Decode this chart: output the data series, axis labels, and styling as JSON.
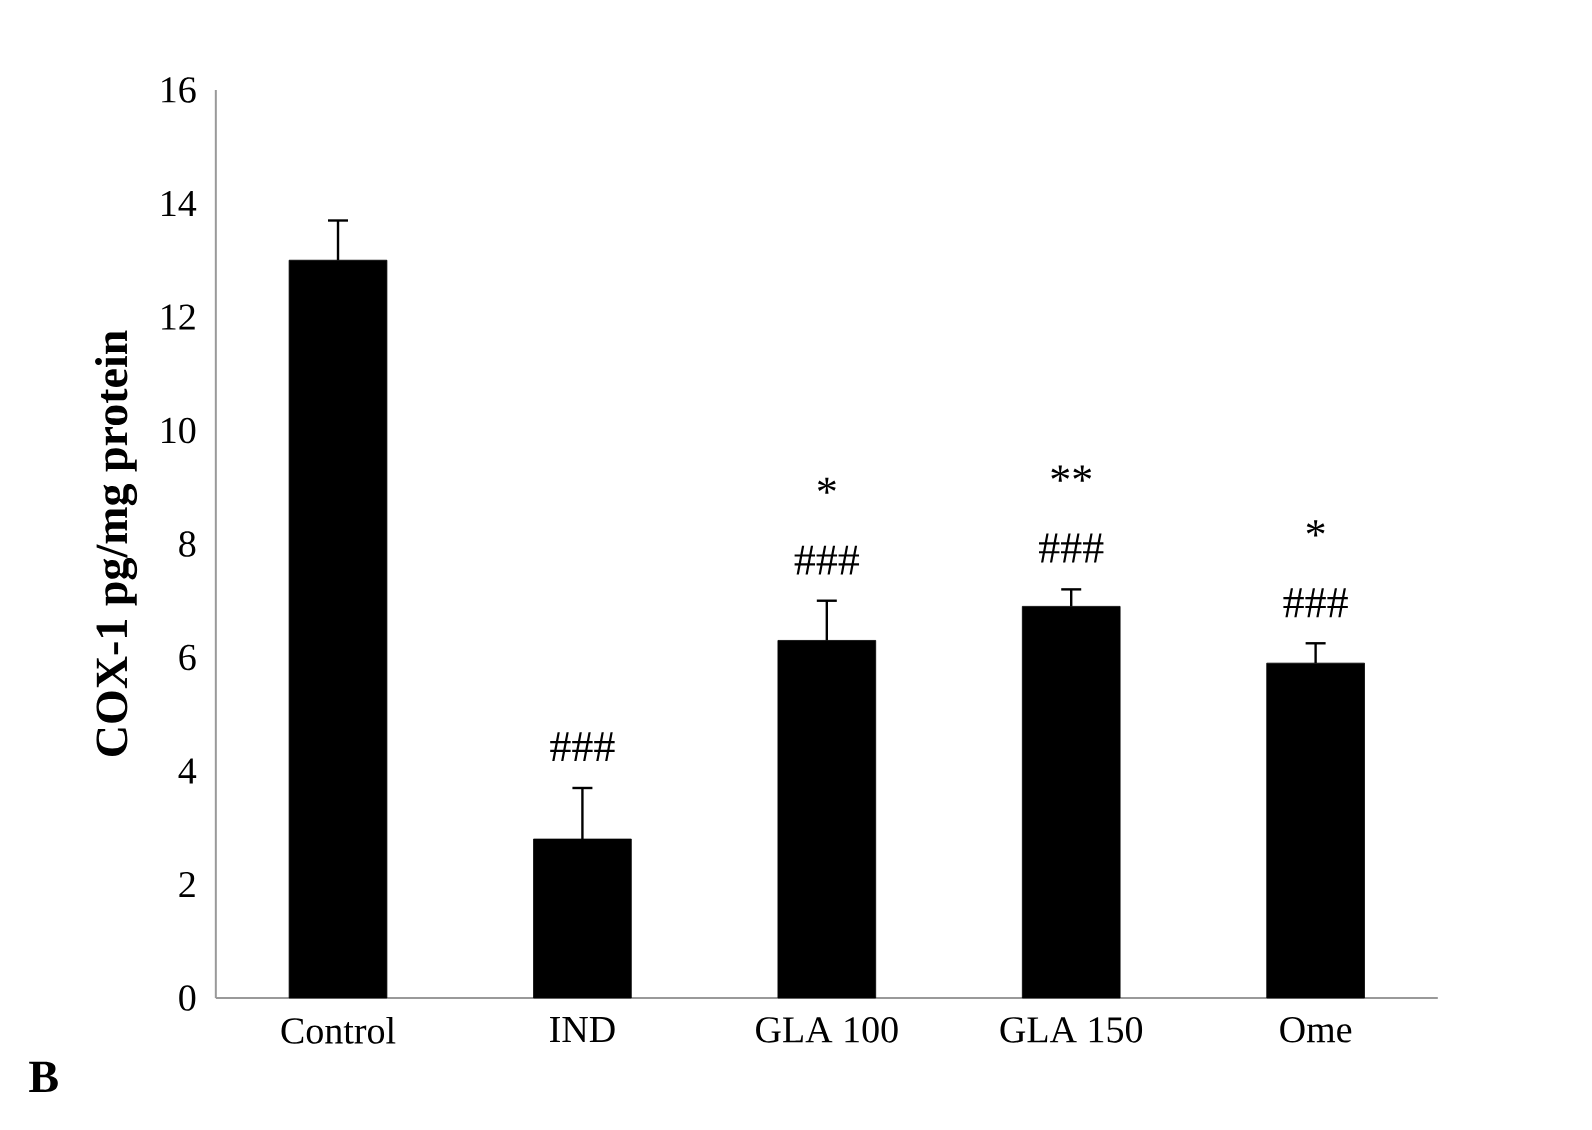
{
  "chart_data": {
    "type": "bar",
    "ylabel": "COX-1 pg/mg protein",
    "categories": [
      "Control",
      "IND",
      "GLA 100",
      "GLA 150",
      "Ome"
    ],
    "values": [
      13.0,
      2.8,
      6.3,
      6.9,
      5.9
    ],
    "errors": [
      0.7,
      0.9,
      0.7,
      0.3,
      0.35
    ],
    "color": "#000000",
    "ylim": [
      0,
      16
    ],
    "yticks": [
      0,
      2,
      4,
      6,
      8,
      10,
      12,
      14,
      16
    ],
    "grid": false,
    "annotations": [
      {
        "text": "###",
        "x": "IND",
        "y": 2.8
      },
      {
        "text": "###",
        "x": "GLA 100",
        "y": 6.3
      },
      "*",
      {
        "text": "###",
        "x": "GLA 150",
        "y": 6.9
      },
      "**",
      {
        "text": "###",
        "x": "Ome",
        "y": 5.9
      },
      "*",
      "B"
    ]
  }
}
